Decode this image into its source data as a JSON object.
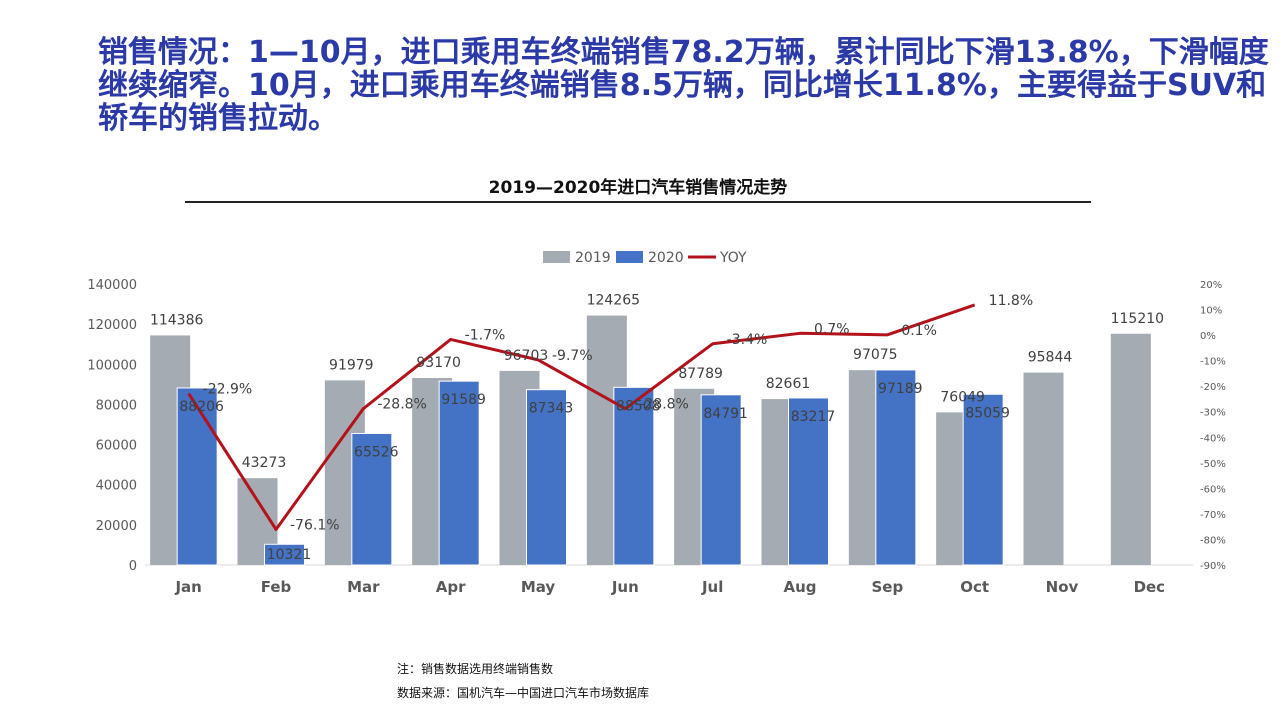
{
  "headline": "销售情况：1—10月，进口乘用车终端销售78.2万辆，累计同比下滑13.8%，下滑幅度继续缩窄。10月，进口乘用车终端销售8.5万辆，同比增长11.8%，主要得益于SUV和轿车的销售拉动。",
  "footnotes": {
    "note": "注：销售数据选用终端销售数",
    "source": "数据来源：国机汽车—中国进口汽车市场数据库"
  },
  "colors": {
    "s2019": "#a5abb2",
    "s2020": "#4472c4",
    "yoy": "#b3121b",
    "headline": "#2b3aa6"
  },
  "chart_data": {
    "type": "bar",
    "title": "2019—2020年进口汽车销售情况走势",
    "categories": [
      "Jan",
      "Feb",
      "Mar",
      "Apr",
      "May",
      "Jun",
      "Jul",
      "Aug",
      "Sep",
      "Oct",
      "Nov",
      "Dec"
    ],
    "series": [
      {
        "name": "2019",
        "type": "bar",
        "values": [
          114386,
          43273,
          91979,
          93170,
          96703,
          124265,
          87789,
          82661,
          97075,
          76049,
          95844,
          115210
        ]
      },
      {
        "name": "2020",
        "type": "bar",
        "values": [
          88206,
          10321,
          65526,
          91589,
          87343,
          88508,
          84791,
          83217,
          97189,
          85059,
          null,
          null
        ]
      },
      {
        "name": "YOY",
        "type": "line",
        "axis": "right",
        "values": [
          -22.9,
          -76.1,
          -28.8,
          -1.7,
          -9.7,
          -28.8,
          -3.4,
          0.7,
          0.1,
          11.8,
          null,
          null
        ],
        "labels": [
          "-22.9%",
          "-76.1%",
          "-28.8%",
          "-1.7%",
          "-9.7%",
          "-28.8%",
          "-3.4%",
          "0.7%",
          "0.1%",
          "11.8%",
          null,
          null
        ]
      }
    ],
    "y_left": {
      "min": 0,
      "max": 140000,
      "step": 20000,
      "ticks": [
        "0",
        "20000",
        "40000",
        "60000",
        "80000",
        "100000",
        "120000",
        "140000"
      ]
    },
    "y_right": {
      "min": -90,
      "max": 20,
      "step": 10,
      "ticks": [
        "-90%",
        "-80%",
        "-70%",
        "-60%",
        "-50%",
        "-40%",
        "-30%",
        "-20%",
        "-10%",
        "0%",
        "10%",
        "20%"
      ]
    },
    "legend": {
      "position": "top-center",
      "items": [
        "2019",
        "2020",
        "YOY"
      ]
    },
    "grid": false
  }
}
